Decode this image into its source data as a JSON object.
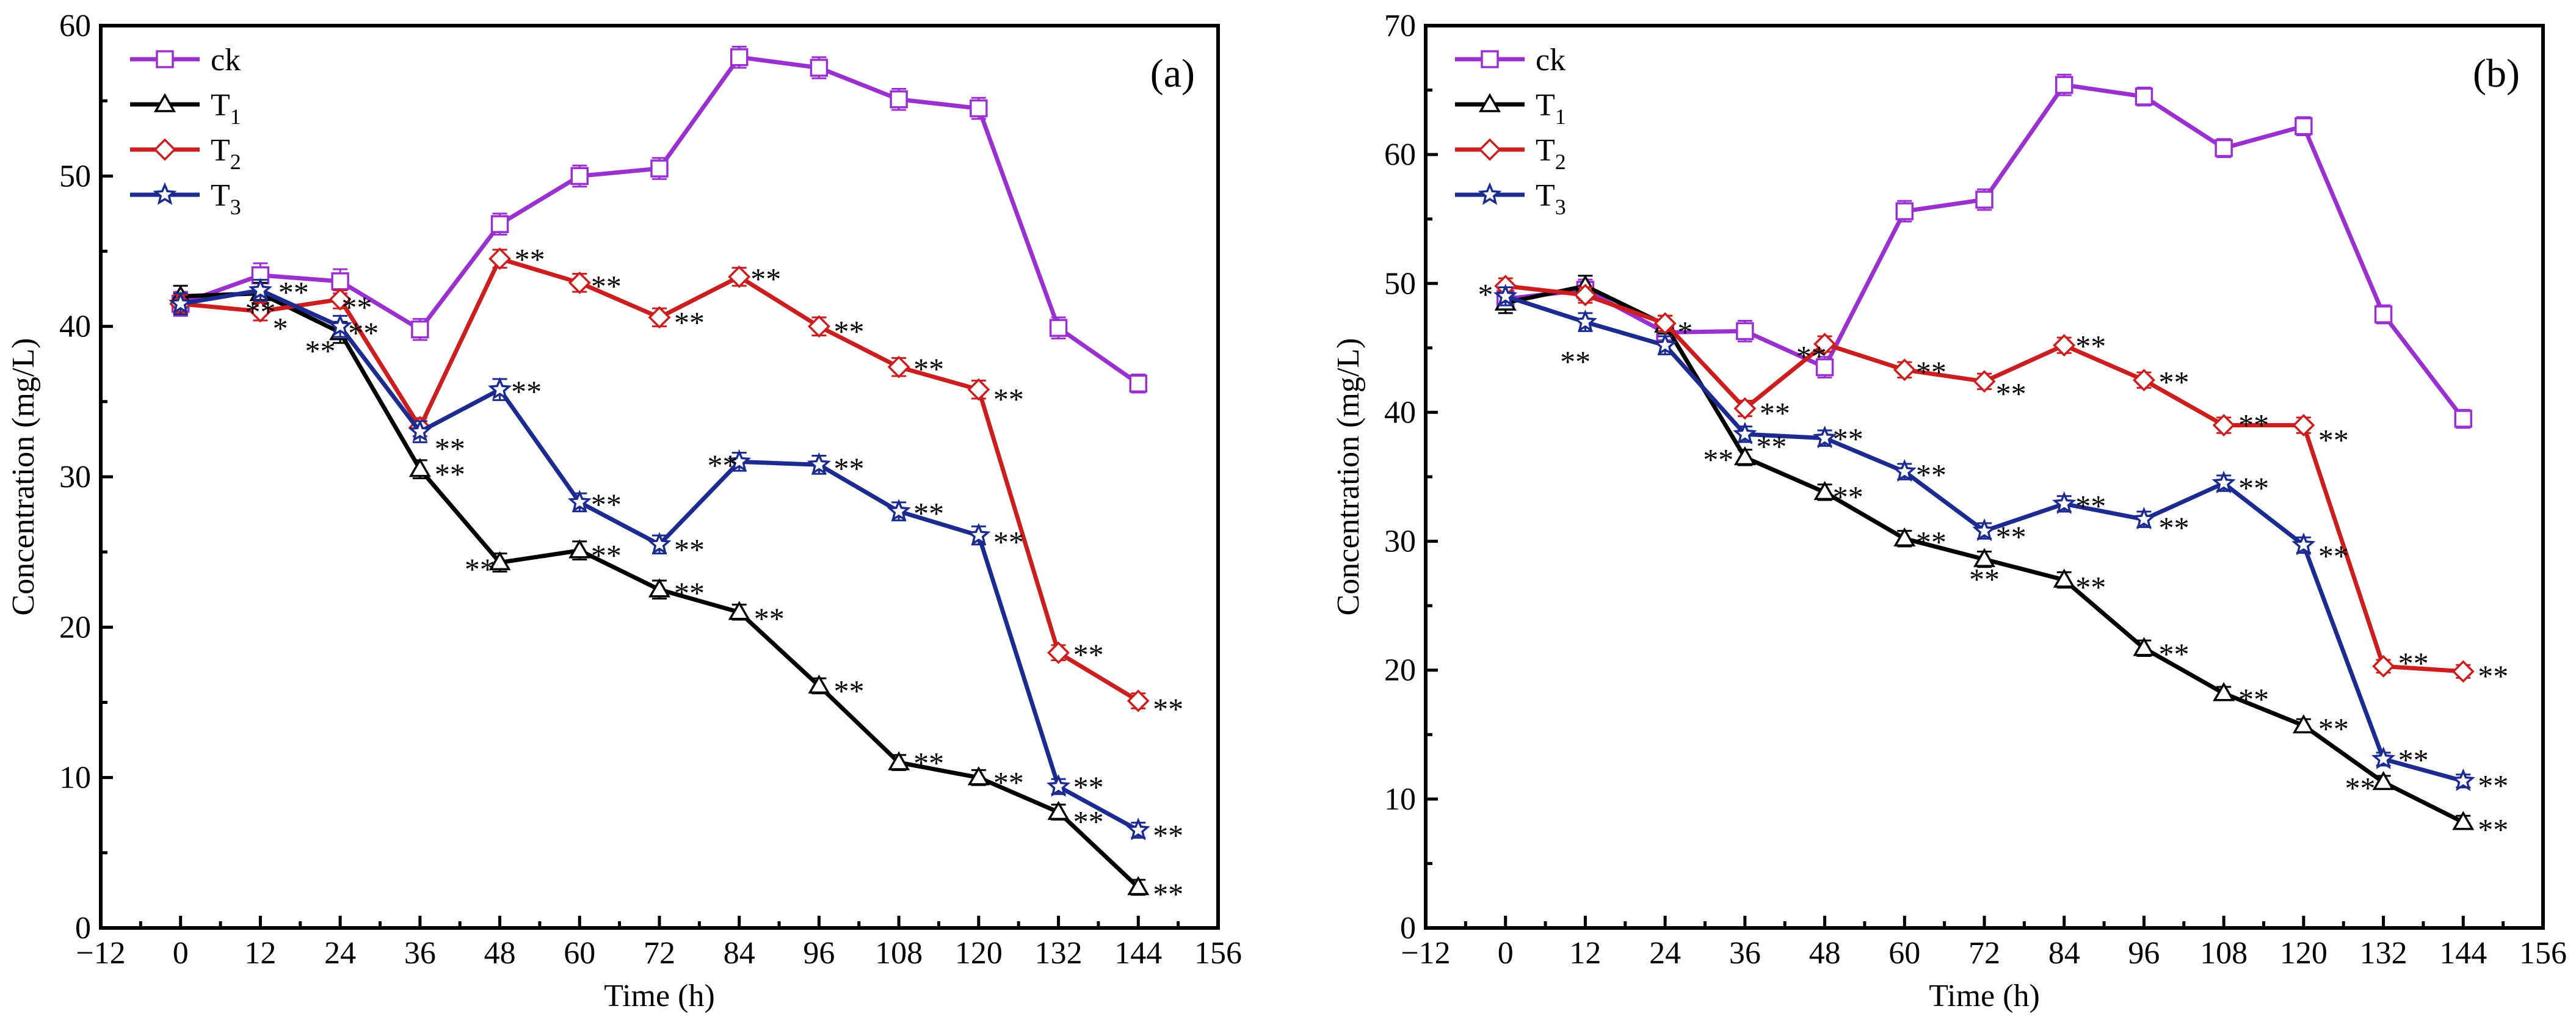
{
  "chart_data": [
    {
      "type": "line",
      "panel_label": "(a)",
      "xlabel": "Time (h)",
      "ylabel": "Concentration (mg/L)",
      "xlim": [
        -12,
        156
      ],
      "ylim": [
        0,
        60
      ],
      "xticks": [
        -12,
        0,
        12,
        24,
        36,
        48,
        60,
        72,
        84,
        96,
        108,
        120,
        132,
        144,
        156
      ],
      "xtick_labels": [
        "−12",
        "0",
        "12",
        "24",
        "36",
        "48",
        "60",
        "72",
        "84",
        "96",
        "108",
        "120",
        "132",
        "144",
        "156"
      ],
      "yticks": [
        0,
        10,
        20,
        30,
        40,
        50,
        60
      ],
      "ytick_labels": [
        "0",
        "10",
        "20",
        "30",
        "40",
        "50",
        "60"
      ],
      "x": [
        0,
        12,
        24,
        36,
        48,
        60,
        72,
        84,
        96,
        108,
        120,
        132,
        144
      ],
      "legend_position": "top-left",
      "series": [
        {
          "name": "ck",
          "sub": "",
          "color": "#9b30d0",
          "marker": "square",
          "values": [
            41.5,
            43.4,
            43.0,
            39.8,
            46.8,
            50.0,
            50.5,
            57.9,
            57.2,
            55.1,
            54.5,
            39.9,
            36.2
          ],
          "errors": [
            0.8,
            0.8,
            0.8,
            0.7,
            0.7,
            0.7,
            0.7,
            0.7,
            0.7,
            0.7,
            0.7,
            0.7,
            0.6
          ]
        },
        {
          "name": "T",
          "sub": "1",
          "color": "#000000",
          "marker": "triangle",
          "values": [
            42.0,
            42.2,
            39.6,
            30.5,
            24.3,
            25.1,
            22.5,
            21.0,
            16.1,
            11.0,
            10.0,
            7.7,
            2.7
          ],
          "errors": [
            0.7,
            0.7,
            0.7,
            0.6,
            0.6,
            0.6,
            0.6,
            0.5,
            0.5,
            0.5,
            0.5,
            0.5,
            0.5
          ]
        },
        {
          "name": "T",
          "sub": "2",
          "color": "#cc1e1e",
          "marker": "diamond",
          "values": [
            41.5,
            41.0,
            41.8,
            33.3,
            44.5,
            42.9,
            40.6,
            43.3,
            40.0,
            37.3,
            35.8,
            18.3,
            15.1
          ],
          "errors": [
            0.6,
            0.6,
            0.6,
            0.6,
            0.6,
            0.6,
            0.6,
            0.6,
            0.6,
            0.6,
            0.6,
            0.5,
            0.5
          ]
        },
        {
          "name": "T",
          "sub": "3",
          "color": "#1c2b8f",
          "marker": "star",
          "values": [
            41.5,
            42.4,
            40.0,
            33.0,
            35.8,
            28.3,
            25.5,
            31.0,
            30.8,
            27.7,
            26.1,
            9.4,
            6.5
          ],
          "errors": [
            0.7,
            0.7,
            0.7,
            0.7,
            0.7,
            0.6,
            0.6,
            0.6,
            0.6,
            0.6,
            0.6,
            0.5,
            0.5
          ]
        }
      ],
      "annotations": [
        {
          "text": "**",
          "x": 12,
          "y": 41.1
        },
        {
          "text": "**",
          "x": 17,
          "y": 42.4
        },
        {
          "text": "*",
          "x": 15,
          "y": 40.0
        },
        {
          "text": "**",
          "x": 26.5,
          "y": 41.4
        },
        {
          "text": "**",
          "x": 27.5,
          "y": 39.7
        },
        {
          "text": "**",
          "x": 21,
          "y": 38.5
        },
        {
          "text": "**",
          "x": 40.5,
          "y": 32.0
        },
        {
          "text": "**",
          "x": 40.5,
          "y": 30.3
        },
        {
          "text": "**",
          "x": 52.5,
          "y": 44.6
        },
        {
          "text": "**",
          "x": 52,
          "y": 35.8
        },
        {
          "text": "**",
          "x": 45,
          "y": 24.0
        },
        {
          "text": "**",
          "x": 64,
          "y": 42.8
        },
        {
          "text": "**",
          "x": 64,
          "y": 28.3
        },
        {
          "text": "**",
          "x": 64,
          "y": 24.9
        },
        {
          "text": "**",
          "x": 76.5,
          "y": 40.4
        },
        {
          "text": "**",
          "x": 76.5,
          "y": 25.3
        },
        {
          "text": "**",
          "x": 76.5,
          "y": 22.4
        },
        {
          "text": "**",
          "x": 88,
          "y": 43.3
        },
        {
          "text": "**",
          "x": 81.5,
          "y": 30.9
        },
        {
          "text": "**",
          "x": 88.5,
          "y": 20.7
        },
        {
          "text": "**",
          "x": 100.5,
          "y": 39.8
        },
        {
          "text": "**",
          "x": 100.5,
          "y": 30.7
        },
        {
          "text": "**",
          "x": 100.5,
          "y": 15.9
        },
        {
          "text": "**",
          "x": 112.5,
          "y": 37.3
        },
        {
          "text": "**",
          "x": 112.5,
          "y": 27.7
        },
        {
          "text": "**",
          "x": 112.5,
          "y": 11.1
        },
        {
          "text": "**",
          "x": 124.5,
          "y": 35.3
        },
        {
          "text": "**",
          "x": 124.5,
          "y": 25.8
        },
        {
          "text": "**",
          "x": 124.5,
          "y": 9.8
        },
        {
          "text": "**",
          "x": 136.5,
          "y": 18.3
        },
        {
          "text": "**",
          "x": 136.5,
          "y": 9.5
        },
        {
          "text": "**",
          "x": 136.5,
          "y": 7.2
        },
        {
          "text": "**",
          "x": 148.5,
          "y": 14.7
        },
        {
          "text": "**",
          "x": 148.5,
          "y": 6.3
        },
        {
          "text": "**",
          "x": 148.5,
          "y": 2.4
        }
      ]
    },
    {
      "type": "line",
      "panel_label": "(b)",
      "xlabel": "Time (h)",
      "ylabel": "Concentration (mg/L)",
      "xlim": [
        -12,
        156
      ],
      "ylim": [
        0,
        70
      ],
      "xticks": [
        -12,
        0,
        12,
        24,
        36,
        48,
        60,
        72,
        84,
        96,
        108,
        120,
        132,
        144,
        156
      ],
      "xtick_labels": [
        "−12",
        "0",
        "12",
        "24",
        "36",
        "48",
        "60",
        "72",
        "84",
        "96",
        "108",
        "120",
        "132",
        "144",
        "156"
      ],
      "yticks": [
        0,
        10,
        20,
        30,
        40,
        50,
        60,
        70
      ],
      "ytick_labels": [
        "0",
        "10",
        "20",
        "30",
        "40",
        "50",
        "60",
        "70"
      ],
      "x": [
        0,
        12,
        24,
        36,
        48,
        60,
        72,
        84,
        96,
        108,
        120,
        132,
        144
      ],
      "legend_position": "top-left",
      "series": [
        {
          "name": "ck",
          "sub": "",
          "color": "#9b30d0",
          "marker": "square",
          "values": [
            48.8,
            49.5,
            46.2,
            46.3,
            43.5,
            55.6,
            56.5,
            65.4,
            64.5,
            60.5,
            62.2,
            47.6,
            39.5
          ],
          "errors": [
            0.8,
            0.8,
            0.8,
            0.8,
            0.8,
            0.8,
            0.8,
            0.8,
            0.7,
            0.7,
            0.7,
            0.7,
            0.7
          ]
        },
        {
          "name": "T",
          "sub": "1",
          "color": "#000000",
          "marker": "triangle",
          "values": [
            48.5,
            49.8,
            46.8,
            36.5,
            33.8,
            30.2,
            28.6,
            27.0,
            21.7,
            18.2,
            15.7,
            11.3,
            8.2
          ],
          "errors": [
            0.8,
            0.8,
            0.7,
            0.6,
            0.6,
            0.6,
            0.6,
            0.6,
            0.6,
            0.5,
            0.5,
            0.5,
            0.5
          ]
        },
        {
          "name": "T",
          "sub": "2",
          "color": "#cc1e1e",
          "marker": "diamond",
          "values": [
            49.8,
            49.1,
            46.9,
            40.3,
            45.3,
            43.3,
            42.4,
            45.2,
            42.5,
            39.0,
            39.0,
            20.3,
            19.9
          ],
          "errors": [
            0.6,
            0.6,
            0.6,
            0.6,
            0.6,
            0.6,
            0.6,
            0.6,
            0.6,
            0.6,
            0.6,
            0.5,
            0.5
          ]
        },
        {
          "name": "T",
          "sub": "3",
          "color": "#1c2b8f",
          "marker": "star",
          "values": [
            49.0,
            47.0,
            45.2,
            38.3,
            38.0,
            35.4,
            30.8,
            32.9,
            31.7,
            34.5,
            29.7,
            13.1,
            11.4
          ],
          "errors": [
            0.7,
            0.7,
            0.7,
            0.6,
            0.6,
            0.6,
            0.6,
            0.6,
            0.6,
            0.6,
            0.6,
            0.5,
            0.5
          ]
        }
      ],
      "annotations": [
        {
          "text": "*",
          "x": -3,
          "y": 49.3
        },
        {
          "text": "**",
          "x": 10.5,
          "y": 44.1
        },
        {
          "text": "*",
          "x": 27,
          "y": 46.4
        },
        {
          "text": "**",
          "x": 40.5,
          "y": 40.1
        },
        {
          "text": "**",
          "x": 40,
          "y": 37.5
        },
        {
          "text": "**",
          "x": 32,
          "y": 36.5
        },
        {
          "text": "**",
          "x": 46,
          "y": 44.5
        },
        {
          "text": "**",
          "x": 51.5,
          "y": 38.1
        },
        {
          "text": "**",
          "x": 51.5,
          "y": 33.6
        },
        {
          "text": "**",
          "x": 64,
          "y": 43.3
        },
        {
          "text": "**",
          "x": 64,
          "y": 35.3
        },
        {
          "text": "**",
          "x": 64,
          "y": 30.1
        },
        {
          "text": "**",
          "x": 76,
          "y": 41.6
        },
        {
          "text": "**",
          "x": 76,
          "y": 30.5
        },
        {
          "text": "**",
          "x": 72,
          "y": 27.2
        },
        {
          "text": "**",
          "x": 88,
          "y": 45.3
        },
        {
          "text": "**",
          "x": 88,
          "y": 32.9
        },
        {
          "text": "**",
          "x": 88,
          "y": 26.6
        },
        {
          "text": "**",
          "x": 100.5,
          "y": 42.5
        },
        {
          "text": "**",
          "x": 100.5,
          "y": 31.2
        },
        {
          "text": "**",
          "x": 100.5,
          "y": 21.4
        },
        {
          "text": "**",
          "x": 112.5,
          "y": 39.2
        },
        {
          "text": "**",
          "x": 112.5,
          "y": 34.3
        },
        {
          "text": "**",
          "x": 112.5,
          "y": 17.9
        },
        {
          "text": "**",
          "x": 124.5,
          "y": 38.0
        },
        {
          "text": "**",
          "x": 124.5,
          "y": 29.0
        },
        {
          "text": "**",
          "x": 124.5,
          "y": 15.6
        },
        {
          "text": "**",
          "x": 136.5,
          "y": 20.7
        },
        {
          "text": "**",
          "x": 136.5,
          "y": 13.2
        },
        {
          "text": "**",
          "x": 128.5,
          "y": 11.0
        },
        {
          "text": "**",
          "x": 148.5,
          "y": 19.7
        },
        {
          "text": "**",
          "x": 148.5,
          "y": 11.2
        },
        {
          "text": "**",
          "x": 148.5,
          "y": 7.8
        }
      ]
    }
  ]
}
